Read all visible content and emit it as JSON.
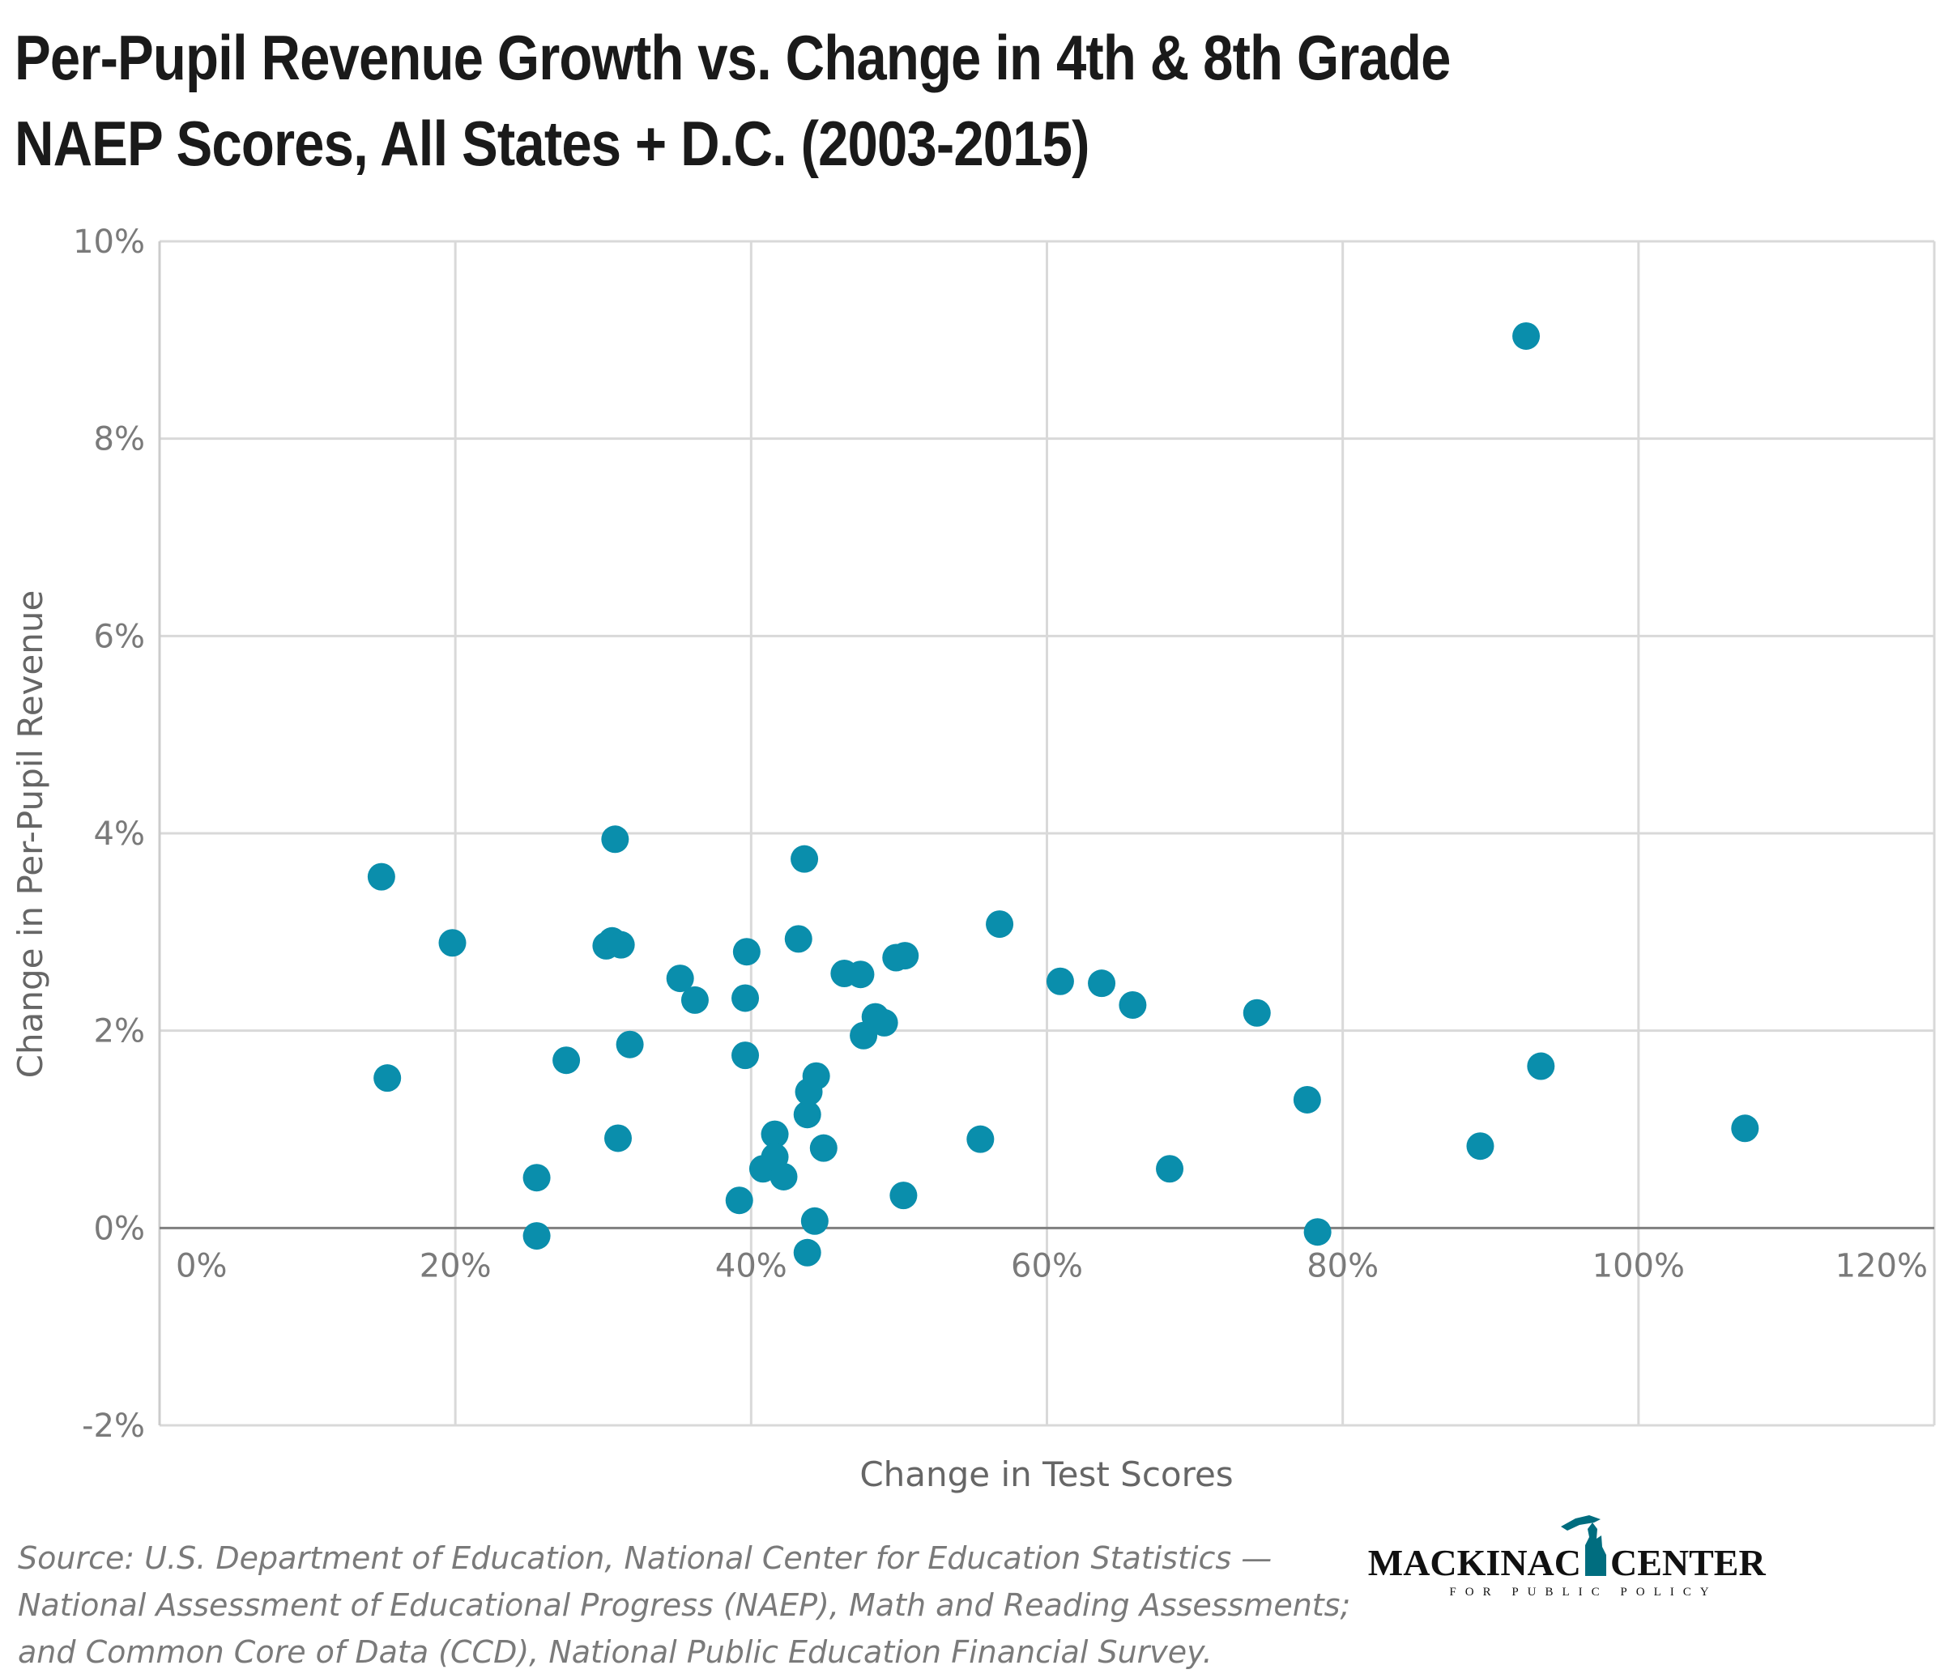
{
  "title_lines": [
    "Per-Pupil Revenue Growth vs. Change in 4th & 8th Grade",
    "NAEP Scores, All States + D.C. (2003-2015)"
  ],
  "source_lines": [
    "Source: U.S. Department of Education, National Center for Education Statistics —",
    "National Assessment of Educational Progress (NAEP), Math and Reading Assessments;",
    "and Common Core of Data (CCD), National Public Education Financial Survey."
  ],
  "logo": {
    "main_left": "MACKINAC",
    "main_right": "CENTER",
    "sub": "FOR PUBLIC POLICY",
    "color": "#006d7f"
  },
  "colors": {
    "point": "#0a8eac",
    "grid": "#d9d9d9",
    "zero_line": "#7f7f7f",
    "text": "#7a7a7a"
  },
  "chart_data": {
    "type": "scatter",
    "title": "Per-Pupil Revenue Growth vs. Change in 4th & 8th Grade NAEP Scores, All States + D.C. (2003-2015)",
    "xlabel": "Change in Test Scores",
    "ylabel": "Change in Per-Pupil Revenue",
    "xlim": [
      0,
      120
    ],
    "ylim": [
      -2,
      10
    ],
    "x_ticks": [
      0,
      20,
      40,
      60,
      80,
      100,
      120
    ],
    "x_tick_labels": [
      "0%",
      "20%",
      "40%",
      "60%",
      "80%",
      "100%",
      "120%"
    ],
    "y_ticks": [
      -2,
      0,
      2,
      4,
      6,
      8,
      10
    ],
    "y_tick_labels": [
      "-2%",
      "0%",
      "2%",
      "4%",
      "6%",
      "8%",
      "10%"
    ],
    "grid": true,
    "legend": "none",
    "points": [
      {
        "x": 15.0,
        "y": 3.56
      },
      {
        "x": 15.4,
        "y": 1.52
      },
      {
        "x": 19.8,
        "y": 2.89
      },
      {
        "x": 25.5,
        "y": 0.51
      },
      {
        "x": 25.5,
        "y": -0.08
      },
      {
        "x": 27.5,
        "y": 1.7
      },
      {
        "x": 30.2,
        "y": 2.86
      },
      {
        "x": 30.6,
        "y": 2.91
      },
      {
        "x": 30.8,
        "y": 3.94
      },
      {
        "x": 31.0,
        "y": 0.91
      },
      {
        "x": 31.2,
        "y": 2.87
      },
      {
        "x": 31.8,
        "y": 1.86
      },
      {
        "x": 35.2,
        "y": 2.53
      },
      {
        "x": 36.2,
        "y": 2.31
      },
      {
        "x": 39.2,
        "y": 0.28
      },
      {
        "x": 39.6,
        "y": 1.75
      },
      {
        "x": 39.6,
        "y": 2.33
      },
      {
        "x": 39.7,
        "y": 2.8
      },
      {
        "x": 40.8,
        "y": 0.6
      },
      {
        "x": 41.6,
        "y": 0.95
      },
      {
        "x": 41.6,
        "y": 0.72
      },
      {
        "x": 42.2,
        "y": 0.52
      },
      {
        "x": 43.2,
        "y": 2.93
      },
      {
        "x": 43.6,
        "y": 3.74
      },
      {
        "x": 43.8,
        "y": 1.15
      },
      {
        "x": 43.8,
        "y": -0.25
      },
      {
        "x": 43.9,
        "y": 1.38
      },
      {
        "x": 44.4,
        "y": 1.54
      },
      {
        "x": 44.3,
        "y": 0.07
      },
      {
        "x": 44.9,
        "y": 0.81
      },
      {
        "x": 46.3,
        "y": 2.58
      },
      {
        "x": 47.4,
        "y": 2.57
      },
      {
        "x": 47.6,
        "y": 1.95
      },
      {
        "x": 48.4,
        "y": 2.14
      },
      {
        "x": 49.0,
        "y": 2.08
      },
      {
        "x": 49.8,
        "y": 2.74
      },
      {
        "x": 50.4,
        "y": 2.76
      },
      {
        "x": 50.3,
        "y": 0.33
      },
      {
        "x": 55.5,
        "y": 0.9
      },
      {
        "x": 56.8,
        "y": 3.08
      },
      {
        "x": 60.9,
        "y": 2.5
      },
      {
        "x": 63.7,
        "y": 2.48
      },
      {
        "x": 65.8,
        "y": 2.26
      },
      {
        "x": 68.3,
        "y": 0.6
      },
      {
        "x": 74.2,
        "y": 2.18
      },
      {
        "x": 77.6,
        "y": 1.3
      },
      {
        "x": 78.3,
        "y": -0.04
      },
      {
        "x": 89.3,
        "y": 0.83
      },
      {
        "x": 92.4,
        "y": 9.04
      },
      {
        "x": 93.4,
        "y": 1.64
      },
      {
        "x": 107.2,
        "y": 1.01
      }
    ]
  }
}
